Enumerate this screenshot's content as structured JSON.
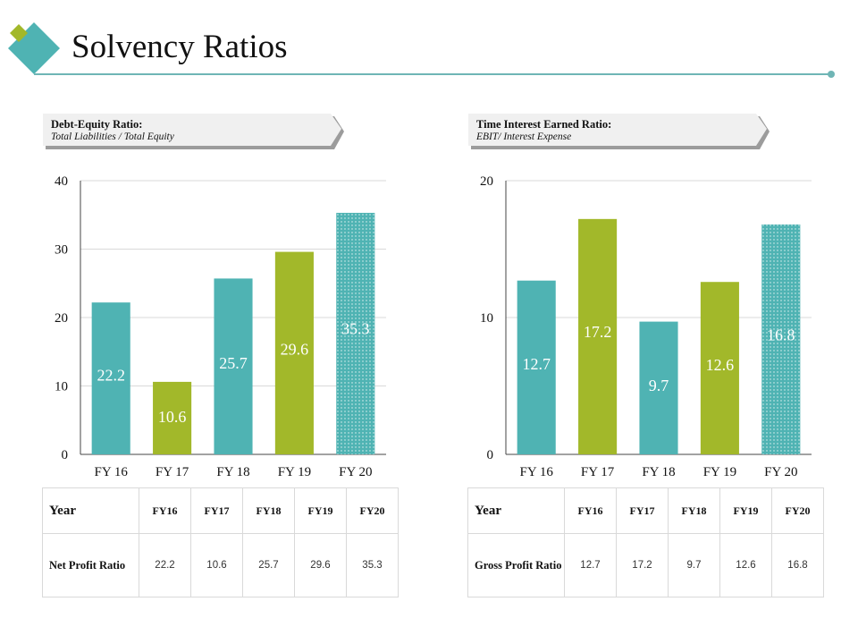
{
  "page": {
    "title": "Solvency Ratios"
  },
  "colors": {
    "teal": "#4fb3b3",
    "green": "#a2b82a",
    "accent_line": "#6fb5b5",
    "grid": "#d9d9d9"
  },
  "banners": [
    {
      "title": "Debt-Equity Ratio:",
      "subtitle": "Total Liabilities / Total Equity"
    },
    {
      "title": "Time Interest Earned Ratio:",
      "subtitle": "EBIT/ Interest Expense"
    }
  ],
  "chart_data": [
    {
      "type": "bar",
      "title": "Debt-Equity Ratio",
      "categories": [
        "FY 16",
        "FY 17",
        "FY 18",
        "FY 19",
        "FY 20"
      ],
      "values": [
        22.2,
        10.6,
        25.7,
        29.6,
        35.3
      ],
      "data_labels": [
        "22.2",
        "10.6",
        "25.7",
        "29.6",
        "35.3"
      ],
      "bar_colors": [
        "#4fb3b3",
        "#a2b82a",
        "#4fb3b3",
        "#a2b82a",
        "#4fb3b3"
      ],
      "patterned": [
        false,
        false,
        false,
        false,
        true
      ],
      "ylim": [
        0,
        40
      ],
      "yticks": [
        0,
        10,
        20,
        30,
        40
      ],
      "grid": true
    },
    {
      "type": "bar",
      "title": "Time Interest Earned Ratio",
      "categories": [
        "FY 16",
        "FY 17",
        "FY 18",
        "FY 19",
        "FY 20"
      ],
      "values": [
        12.7,
        17.2,
        9.7,
        12.6,
        16.8
      ],
      "data_labels": [
        "12.7",
        "17.2",
        "9.7",
        "12.6",
        "16.8"
      ],
      "bar_colors": [
        "#4fb3b3",
        "#a2b82a",
        "#4fb3b3",
        "#a2b82a",
        "#4fb3b3"
      ],
      "patterned": [
        false,
        false,
        false,
        false,
        true
      ],
      "ylim": [
        0,
        20
      ],
      "yticks": [
        0,
        10,
        20
      ],
      "grid": true
    }
  ],
  "tables": [
    {
      "header_label": "Year",
      "years": [
        "FY16",
        "FY17",
        "FY18",
        "FY19",
        "FY20"
      ],
      "row_label": "Net Profit Ratio",
      "values": [
        "22.2",
        "10.6",
        "25.7",
        "29.6",
        "35.3"
      ]
    },
    {
      "header_label": "Year",
      "years": [
        "FY16",
        "FY17",
        "FY18",
        "FY19",
        "FY20"
      ],
      "row_label": "Gross Profit Ratio",
      "values": [
        "12.7",
        "17.2",
        "9.7",
        "12.6",
        "16.8"
      ]
    }
  ]
}
